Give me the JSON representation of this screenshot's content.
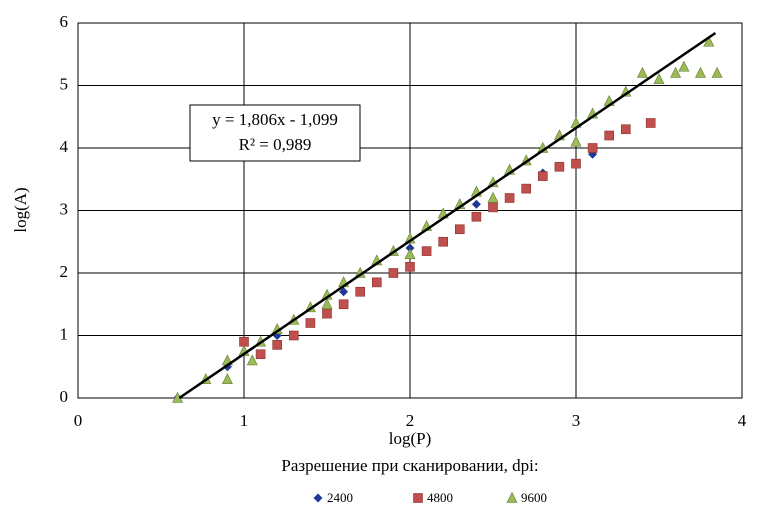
{
  "chart_data": {
    "type": "scatter",
    "x_label": "log(P)",
    "y_label": "log(A)",
    "legend_title": "Разрешение при сканировании, dpi:",
    "xlim": [
      0,
      4
    ],
    "xticks": [
      0,
      1,
      2,
      3,
      4
    ],
    "ylim": [
      0,
      6
    ],
    "yticks": [
      0,
      1,
      2,
      3,
      4,
      5,
      6
    ],
    "grid": true,
    "legend": "bottom",
    "annotation": [
      "y = 1,806x - 1,099",
      "R² = 0,989"
    ],
    "trendline": {
      "color": "#000000",
      "x": [
        0.61,
        3.84
      ],
      "y": [
        0,
        5.84
      ]
    },
    "series": [
      {
        "name": "2400",
        "color": "#1f3a93",
        "marker": "diamond",
        "x": [
          0.6,
          0.9,
          1.2,
          1.6,
          2.0,
          2.4,
          2.8,
          3.1
        ],
        "values": [
          0,
          0.5,
          1.0,
          1.7,
          2.4,
          3.1,
          3.6,
          3.9
        ]
      },
      {
        "name": "4800",
        "color": "#c0504d",
        "marker": "square",
        "x": [
          1.0,
          1.1,
          1.2,
          1.3,
          1.4,
          1.5,
          1.6,
          1.7,
          1.8,
          1.9,
          2.0,
          2.1,
          2.2,
          2.3,
          2.4,
          2.5,
          2.6,
          2.7,
          2.8,
          2.9,
          3.0,
          3.1,
          3.2,
          3.3,
          3.45
        ],
        "values": [
          0.9,
          0.7,
          0.85,
          1.0,
          1.2,
          1.35,
          1.5,
          1.7,
          1.85,
          2.0,
          2.1,
          2.35,
          2.5,
          2.7,
          2.9,
          3.05,
          3.2,
          3.35,
          3.55,
          3.7,
          3.75,
          4.0,
          4.2,
          4.3,
          4.4
        ]
      },
      {
        "name": "9600",
        "color": "#9bbb59",
        "marker": "triangle",
        "x": [
          0.6,
          0.77,
          0.9,
          0.9,
          1.0,
          1.05,
          1.1,
          1.2,
          1.3,
          1.4,
          1.5,
          1.6,
          1.7,
          1.8,
          1.9,
          2.0,
          2.1,
          2.2,
          2.3,
          2.4,
          2.5,
          2.6,
          2.7,
          2.8,
          2.9,
          3.0,
          3.1,
          3.2,
          3.3,
          3.4,
          3.5,
          3.6,
          3.65,
          3.75,
          3.8,
          3.85,
          1.5,
          2.0,
          2.5,
          3.0
        ],
        "values": [
          0,
          0.3,
          0.6,
          0.3,
          0.75,
          0.6,
          0.9,
          1.1,
          1.25,
          1.45,
          1.65,
          1.85,
          2.0,
          2.2,
          2.35,
          2.55,
          2.75,
          2.95,
          3.1,
          3.3,
          3.45,
          3.65,
          3.8,
          4.0,
          4.2,
          4.4,
          4.55,
          4.75,
          4.9,
          5.2,
          5.1,
          5.2,
          5.3,
          5.2,
          5.7,
          5.2,
          1.5,
          2.3,
          3.2,
          4.1
        ]
      }
    ]
  }
}
